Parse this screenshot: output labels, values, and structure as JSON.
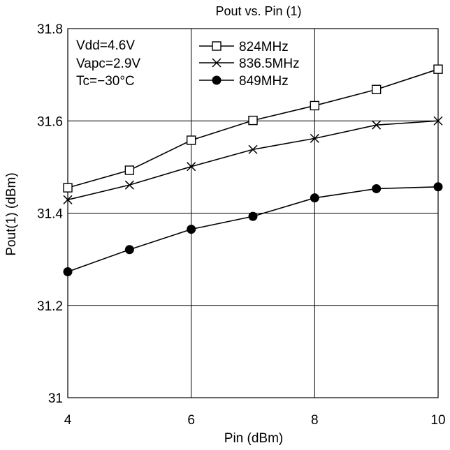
{
  "chart_data": {
    "type": "line",
    "title": "Pout vs. Pin (1)",
    "xlabel": "Pin  (dBm)",
    "ylabel": "Pout(1)  (dBm)",
    "xlim": [
      4,
      10
    ],
    "ylim": [
      31,
      31.8
    ],
    "x_ticks": [
      "4",
      "6",
      "8",
      "10"
    ],
    "y_ticks": [
      "31",
      "31.2",
      "31.4",
      "31.6",
      "31.8"
    ],
    "grid": true,
    "legend_position": "top-center",
    "annotations": [
      "Vdd=4.6V",
      "Vapc=2.9V",
      "Tc=−30°C"
    ],
    "x": [
      4,
      5,
      6,
      7,
      8,
      9,
      10
    ],
    "series": [
      {
        "name": "824MHz",
        "marker": "open-square",
        "values": [
          31.455,
          31.493,
          31.558,
          31.601,
          31.633,
          31.668,
          31.712
        ]
      },
      {
        "name": "836.5MHz",
        "marker": "cross",
        "values": [
          31.429,
          31.461,
          31.501,
          31.538,
          31.562,
          31.591,
          31.6
        ]
      },
      {
        "name": "849MHz",
        "marker": "filled-circle",
        "values": [
          31.273,
          31.321,
          31.365,
          31.393,
          31.433,
          31.453,
          31.457
        ]
      }
    ]
  }
}
